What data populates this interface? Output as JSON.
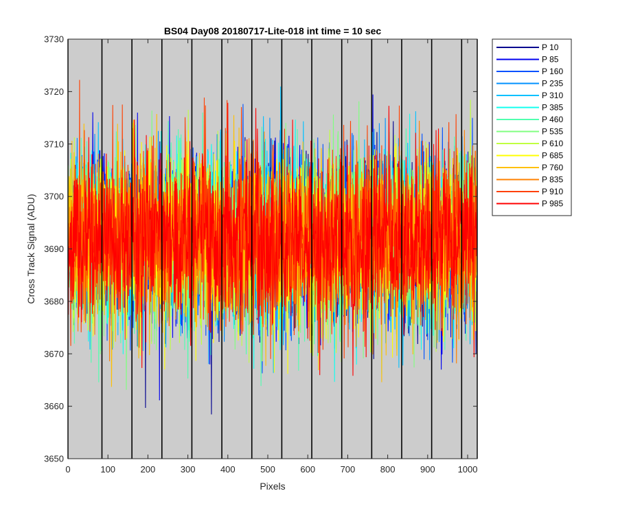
{
  "chart_data": {
    "type": "line",
    "title": "BS04 Day08 20180717-Lite-018 int time = 10 sec",
    "xlabel": "Pixels",
    "ylabel": "Cross Track Signal (ADU)",
    "xlim": [
      0,
      1024
    ],
    "ylim": [
      3650,
      3730
    ],
    "xticks": [
      0,
      100,
      200,
      300,
      400,
      500,
      600,
      700,
      800,
      900,
      1000
    ],
    "yticks": [
      3650,
      3660,
      3670,
      3680,
      3690,
      3700,
      3710,
      3720,
      3730
    ],
    "plot_background": "#cccccc",
    "vertical_markers": [
      0,
      85,
      160,
      235,
      310,
      385,
      460,
      535,
      610,
      685,
      760,
      835,
      910,
      985,
      1024
    ],
    "vertical_marker_color": "#000000",
    "legend_position": "outside-top-right",
    "noise_model": {
      "mean": 3692,
      "std": 8,
      "min": 3656,
      "max": 3725,
      "n_points": 1024
    },
    "series": [
      {
        "name": "P 10",
        "color": "#00008f"
      },
      {
        "name": "P 85",
        "color": "#0000ef"
      },
      {
        "name": "P 160",
        "color": "#0050ff"
      },
      {
        "name": "P 235",
        "color": "#0090ff"
      },
      {
        "name": "P 310",
        "color": "#00c0ff"
      },
      {
        "name": "P 385",
        "color": "#10ffef"
      },
      {
        "name": "P 460",
        "color": "#50ffaf"
      },
      {
        "name": "P 535",
        "color": "#80ff80"
      },
      {
        "name": "P 610",
        "color": "#c0ff40"
      },
      {
        "name": "P 685",
        "color": "#ffff00"
      },
      {
        "name": "P 760",
        "color": "#ffc000"
      },
      {
        "name": "P 835",
        "color": "#ff8000"
      },
      {
        "name": "P 910",
        "color": "#ff4000"
      },
      {
        "name": "P 985",
        "color": "#ff0000"
      }
    ]
  }
}
